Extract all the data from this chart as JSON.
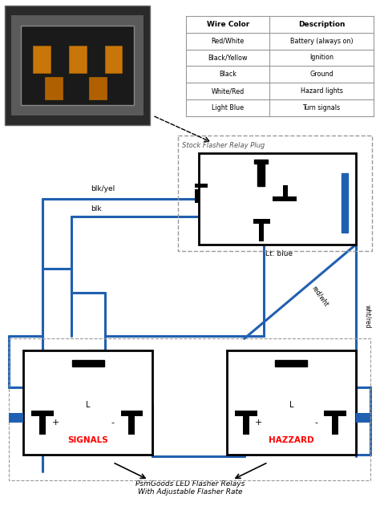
{
  "bg_color": "#ffffff",
  "wire_color": "#2060b0",
  "box_color": "#000000",
  "dashed_box_color": "#999999",
  "table": {
    "headers": [
      "Wire Color",
      "Description"
    ],
    "rows": [
      [
        "Red/White",
        "Battery (always on)"
      ],
      [
        "Black/Yellow",
        "Ignition"
      ],
      [
        "Black",
        "Ground"
      ],
      [
        "White/Red",
        "Hazard lights"
      ],
      [
        "Light Blue",
        "Turn signals"
      ]
    ]
  },
  "bottom_label": "PsmGoods LED Flasher Relays\nWith Adjustable Flasher Rate"
}
